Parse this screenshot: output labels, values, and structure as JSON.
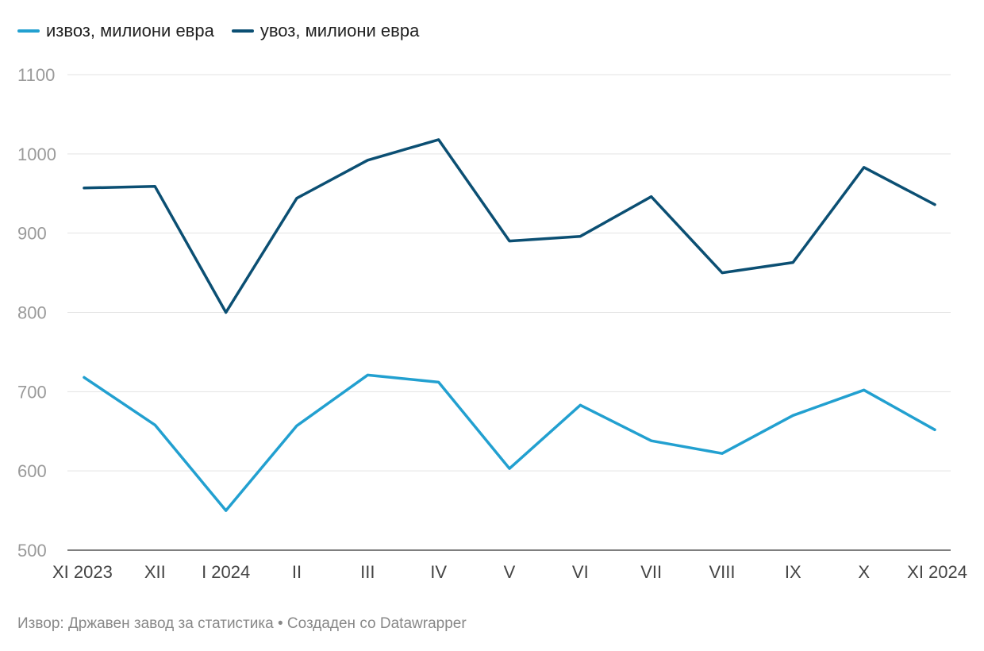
{
  "chart_data": {
    "type": "line",
    "categories": [
      "XI 2023",
      "XII",
      "I 2024",
      "II",
      "III",
      "IV",
      "V",
      "VI",
      "VII",
      "VIII",
      "IX",
      "X",
      "XI 2024"
    ],
    "series": [
      {
        "name": "извоз, милиони евра",
        "color": "#22a0d0",
        "values": [
          718,
          658,
          550,
          657,
          721,
          712,
          603,
          683,
          638,
          622,
          670,
          702,
          652
        ]
      },
      {
        "name": "увоз, милиони евра",
        "color": "#0b4f73",
        "values": [
          957,
          959,
          800,
          944,
          992,
          1018,
          890,
          896,
          946,
          850,
          863,
          983,
          936
        ]
      }
    ],
    "yticks": [
      500,
      600,
      700,
      800,
      900,
      1000,
      1100
    ],
    "ylim": [
      500,
      1100
    ],
    "grid": true,
    "legend_position": "top-left"
  },
  "footer": {
    "text": "Извор: Државен завод за статистика • Создаден со Datawrapper"
  }
}
